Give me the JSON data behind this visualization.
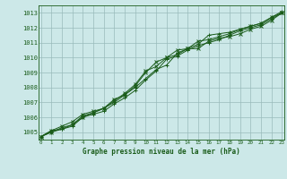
{
  "title": "Graphe pression niveau de la mer (hPa)",
  "bg_color": "#cce8e8",
  "grid_color": "#99bbbb",
  "line_color": "#1a5c1a",
  "marker_color": "#1a5c1a",
  "x_min": 0,
  "x_max": 23,
  "y_min": 1004.5,
  "y_max": 1013.5,
  "y_ticks": [
    1005,
    1006,
    1007,
    1008,
    1009,
    1010,
    1011,
    1012,
    1013
  ],
  "x_ticks": [
    0,
    1,
    2,
    3,
    4,
    5,
    6,
    7,
    8,
    9,
    10,
    11,
    12,
    13,
    14,
    15,
    16,
    17,
    18,
    19,
    20,
    21,
    22,
    23
  ],
  "series": [
    [
      1004.7,
      1005.0,
      1005.2,
      1005.4,
      1006.0,
      1006.2,
      1006.4,
      1006.9,
      1007.3,
      1007.8,
      1008.5,
      1009.1,
      1009.9,
      1010.1,
      1010.5,
      1010.8,
      1011.0,
      1011.2,
      1011.5,
      1011.8,
      1012.0,
      1012.2,
      1012.6,
      1013.0
    ],
    [
      1004.7,
      1005.0,
      1005.3,
      1005.5,
      1006.0,
      1006.3,
      1006.6,
      1007.2,
      1007.5,
      1008.1,
      1009.0,
      1009.7,
      1010.0,
      1010.2,
      1010.6,
      1010.6,
      1011.1,
      1011.3,
      1011.4,
      1011.6,
      1011.9,
      1012.1,
      1012.5,
      1013.0
    ],
    [
      1004.7,
      1005.1,
      1005.2,
      1005.5,
      1006.1,
      1006.3,
      1006.6,
      1007.0,
      1007.5,
      1008.0,
      1008.6,
      1009.2,
      1009.5,
      1010.3,
      1010.6,
      1010.9,
      1011.5,
      1011.6,
      1011.7,
      1011.9,
      1012.1,
      1012.3,
      1012.7,
      1013.1
    ],
    [
      1004.7,
      1005.1,
      1005.4,
      1005.7,
      1006.2,
      1006.4,
      1006.6,
      1007.1,
      1007.6,
      1008.2,
      1009.1,
      1009.4,
      1010.0,
      1010.5,
      1010.6,
      1011.1,
      1011.2,
      1011.4,
      1011.6,
      1011.9,
      1012.1,
      1012.3,
      1012.7,
      1013.0
    ]
  ]
}
